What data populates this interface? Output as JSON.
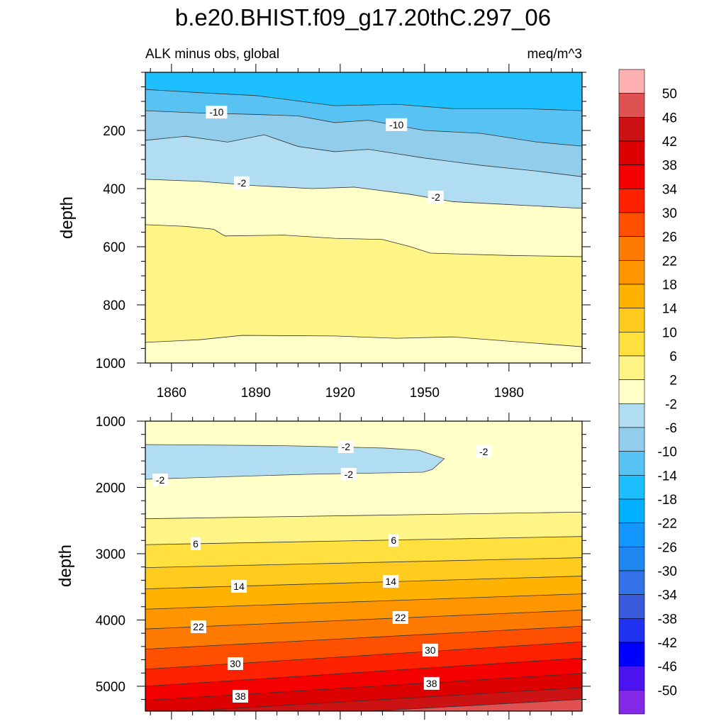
{
  "chart_data": {
    "type": "contour",
    "title": "b.e20.BHIST.f09_g17.20thC.297_06",
    "subtitle_left": "ALK minus obs, global",
    "subtitle_right": "meq/m^3",
    "colorbar": {
      "labels": [
        "50",
        "46",
        "42",
        "38",
        "34",
        "30",
        "26",
        "22",
        "18",
        "14",
        "10",
        "6",
        "2",
        "-2",
        "-6",
        "-10",
        "-14",
        "-18",
        "-22",
        "-26",
        "-30",
        "-34",
        "-38",
        "-42",
        "-46",
        "-50"
      ],
      "colors": [
        "#FFB0B0",
        "#E05252",
        "#CC1212",
        "#DC0000",
        "#F50000",
        "#FF2200",
        "#FF5000",
        "#FF7A00",
        "#FF9600",
        "#FFB200",
        "#FFCB1E",
        "#FFE03E",
        "#FFF486",
        "#FFFFC8",
        "#B0DDF2",
        "#92CDEC",
        "#58C2F2",
        "#1EBFFF",
        "#00AFFF",
        "#1496FF",
        "#1E87F0",
        "#3272E6",
        "#3A5ADC",
        "#1E32F0",
        "#0000FF",
        "#4B14F0",
        "#8228E6"
      ]
    },
    "panels": [
      {
        "ylabel": "depth",
        "xlim": [
          1850.7,
          2006
        ],
        "ylim": [
          0,
          1000
        ],
        "xticks": [
          1860,
          1890,
          1920,
          1950,
          1980
        ],
        "xtick_labels": [
          "1860",
          "1890",
          "1920",
          "1950",
          "1980"
        ],
        "yticks": [
          200,
          400,
          600,
          800,
          1000
        ],
        "ytick_labels": [
          "200",
          "400",
          "600",
          "800",
          "1000"
        ],
        "bands": [
          {
            "level_range": "-18 to -14",
            "color": "#1EBFFF",
            "upper_boundary": null
          },
          {
            "level_range": "-14 to -10",
            "color": "#58C2F2",
            "upper_boundary": [
              [
                1850.7,
                59
              ],
              [
                1870,
                70
              ],
              [
                1890,
                80
              ],
              [
                1918,
                115
              ],
              [
                1940,
                110
              ],
              [
                1960,
                125
              ],
              [
                1985,
                125
              ],
              [
                2006,
                132
              ]
            ]
          },
          {
            "level_range": "-10 to -6",
            "color": "#92CDEC",
            "upper_boundary": [
              [
                1850.7,
                132
              ],
              [
                1870,
                140
              ],
              [
                1890,
                145
              ],
              [
                1905,
                150
              ],
              [
                1918,
                173
              ],
              [
                1930,
                165
              ],
              [
                1950,
                200
              ],
              [
                1970,
                210
              ],
              [
                1990,
                240
              ],
              [
                2006,
                254
              ]
            ]
          },
          {
            "level_range": "-6 to -2",
            "color": "#B0DDF2",
            "upper_boundary": [
              [
                1850.7,
                234
              ],
              [
                1865,
                220
              ],
              [
                1880,
                240
              ],
              [
                1893,
                215
              ],
              [
                1905,
                255
              ],
              [
                1918,
                273
              ],
              [
                1930,
                265
              ],
              [
                1950,
                295
              ],
              [
                1970,
                320
              ],
              [
                1990,
                340
              ],
              [
                2006,
                359
              ]
            ]
          },
          {
            "level_range": "-2 to 2",
            "color": "#FFFFC8",
            "upper_boundary": [
              [
                1850.7,
                368
              ],
              [
                1870,
                375
              ],
              [
                1890,
                390
              ],
              [
                1910,
                400
              ],
              [
                1925,
                395
              ],
              [
                1945,
                420
              ],
              [
                1960,
                445
              ],
              [
                1980,
                455
              ],
              [
                2006,
                468
              ]
            ]
          },
          {
            "level_range": "2 to 6",
            "color": "#FFF486",
            "upper_boundary": [
              [
                1850.7,
                524
              ],
              [
                1865,
                530
              ],
              [
                1875,
                540
              ],
              [
                1879,
                563
              ],
              [
                1900,
                560
              ],
              [
                1918,
                571
              ],
              [
                1935,
                575
              ],
              [
                1945,
                600
              ],
              [
                1952,
                622
              ],
              [
                1980,
                630
              ],
              [
                2006,
                634
              ]
            ]
          },
          {
            "level_range": "-2 to 2",
            "color": "#FFFFC8",
            "upper_boundary": [
              [
                1850.7,
                929
              ],
              [
                1870,
                920
              ],
              [
                1885,
                905
              ],
              [
                1918,
                907
              ],
              [
                1940,
                915
              ],
              [
                1960,
                910
              ],
              [
                1980,
                925
              ],
              [
                2006,
                944
              ]
            ]
          }
        ],
        "contour_labels": [
          {
            "text": "-10",
            "year": 1876,
            "depth": 137
          },
          {
            "text": "-10",
            "year": 1940,
            "depth": 180
          },
          {
            "text": "-2",
            "year": 1885,
            "depth": 380
          },
          {
            "text": "-2",
            "year": 1954,
            "depth": 429
          }
        ]
      },
      {
        "ylabel": "depth",
        "xlim": [
          1850.7,
          2006
        ],
        "ylim": [
          1000,
          5375
        ],
        "xticks": [
          1860,
          1890,
          1920,
          1950,
          1980
        ],
        "xtick_labels": [],
        "yticks": [
          1000,
          2000,
          3000,
          4000,
          5000
        ],
        "ytick_labels": [
          "1000",
          "2000",
          "3000",
          "4000",
          "5000"
        ],
        "bands": [
          {
            "level_range": "-2 to 2",
            "color": "#FFFFC8",
            "upper_boundary": null
          },
          {
            "level_range": "2 to 6",
            "color": "#FFF486",
            "upper_boundary": [
              [
                1850.7,
                2473
              ],
              [
                2006,
                2372
              ]
            ]
          },
          {
            "level_range": "6 to 10",
            "color": "#FFE03E",
            "upper_boundary": [
              [
                1850.7,
                2864
              ],
              [
                2006,
                2740
              ]
            ]
          },
          {
            "level_range": "10 to 14",
            "color": "#FFCB1E",
            "upper_boundary": [
              [
                1850.7,
                3210
              ],
              [
                2006,
                3060
              ]
            ]
          },
          {
            "level_range": "14 to 18",
            "color": "#FFB200",
            "upper_boundary": [
              [
                1850.7,
                3531
              ],
              [
                2006,
                3338
              ]
            ]
          },
          {
            "level_range": "18 to 22",
            "color": "#FF9600",
            "upper_boundary": [
              [
                1850.7,
                3837
              ],
              [
                2006,
                3606
              ]
            ]
          },
          {
            "level_range": "22 to 26",
            "color": "#FF7A00",
            "upper_boundary": [
              [
                1850.7,
                4136
              ],
              [
                2006,
                3851
              ]
            ]
          },
          {
            "level_range": "26 to 30",
            "color": "#FF5000",
            "upper_boundary": [
              [
                1850.7,
                4440
              ],
              [
                2006,
                4094
              ]
            ]
          },
          {
            "level_range": "30 to 34",
            "color": "#FF2200",
            "upper_boundary": [
              [
                1850.7,
                4743
              ],
              [
                2006,
                4330
              ]
            ]
          },
          {
            "level_range": "34 to 38",
            "color": "#F50000",
            "upper_boundary": [
              [
                1850.7,
                5000
              ],
              [
                2006,
                4575
              ]
            ]
          },
          {
            "level_range": "38 to 42",
            "color": "#DC0000",
            "upper_boundary": [
              [
                1850.7,
                5214
              ],
              [
                2006,
                4807
              ]
            ]
          },
          {
            "level_range": "42 to 46",
            "color": "#CC1212",
            "upper_boundary": [
              [
                1866,
                5375
              ],
              [
                2006,
                5021
              ]
            ]
          },
          {
            "level_range": "46 to 50",
            "color": "#E05252",
            "upper_boundary": [
              [
                1931,
                5375
              ],
              [
                2006,
                5198
              ]
            ]
          }
        ],
        "regions": [
          {
            "level_range": "-6 to -2",
            "color": "#B0DDF2",
            "outline": [
              [
                1850.7,
                1353
              ],
              [
                1900,
                1370
              ],
              [
                1935.6,
                1406
              ],
              [
                1948,
                1440
              ],
              [
                1957,
                1567
              ],
              [
                1952.8,
                1727
              ],
              [
                1949.5,
                1770
              ],
              [
                1908,
                1802
              ],
              [
                1850.7,
                1877
              ]
            ]
          }
        ],
        "contour_labels": [
          {
            "text": "-2",
            "year": 1922,
            "depth": 1385
          },
          {
            "text": "-2",
            "year": 1971,
            "depth": 1460
          },
          {
            "text": "-2",
            "year": 1923,
            "depth": 1802
          },
          {
            "text": "-2",
            "year": 1856,
            "depth": 1888
          },
          {
            "text": "6",
            "year": 1868.6,
            "depth": 2850
          },
          {
            "text": "6",
            "year": 1939,
            "depth": 2797
          },
          {
            "text": "14",
            "year": 1884,
            "depth": 3492
          },
          {
            "text": "14",
            "year": 1938,
            "depth": 3417
          },
          {
            "text": "22",
            "year": 1869.6,
            "depth": 4102
          },
          {
            "text": "22",
            "year": 1941.4,
            "depth": 3963
          },
          {
            "text": "30",
            "year": 1882.7,
            "depth": 4658
          },
          {
            "text": "30",
            "year": 1952,
            "depth": 4454
          },
          {
            "text": "38",
            "year": 1884.5,
            "depth": 5150
          },
          {
            "text": "38",
            "year": 1952.5,
            "depth": 4957
          }
        ]
      }
    ]
  }
}
